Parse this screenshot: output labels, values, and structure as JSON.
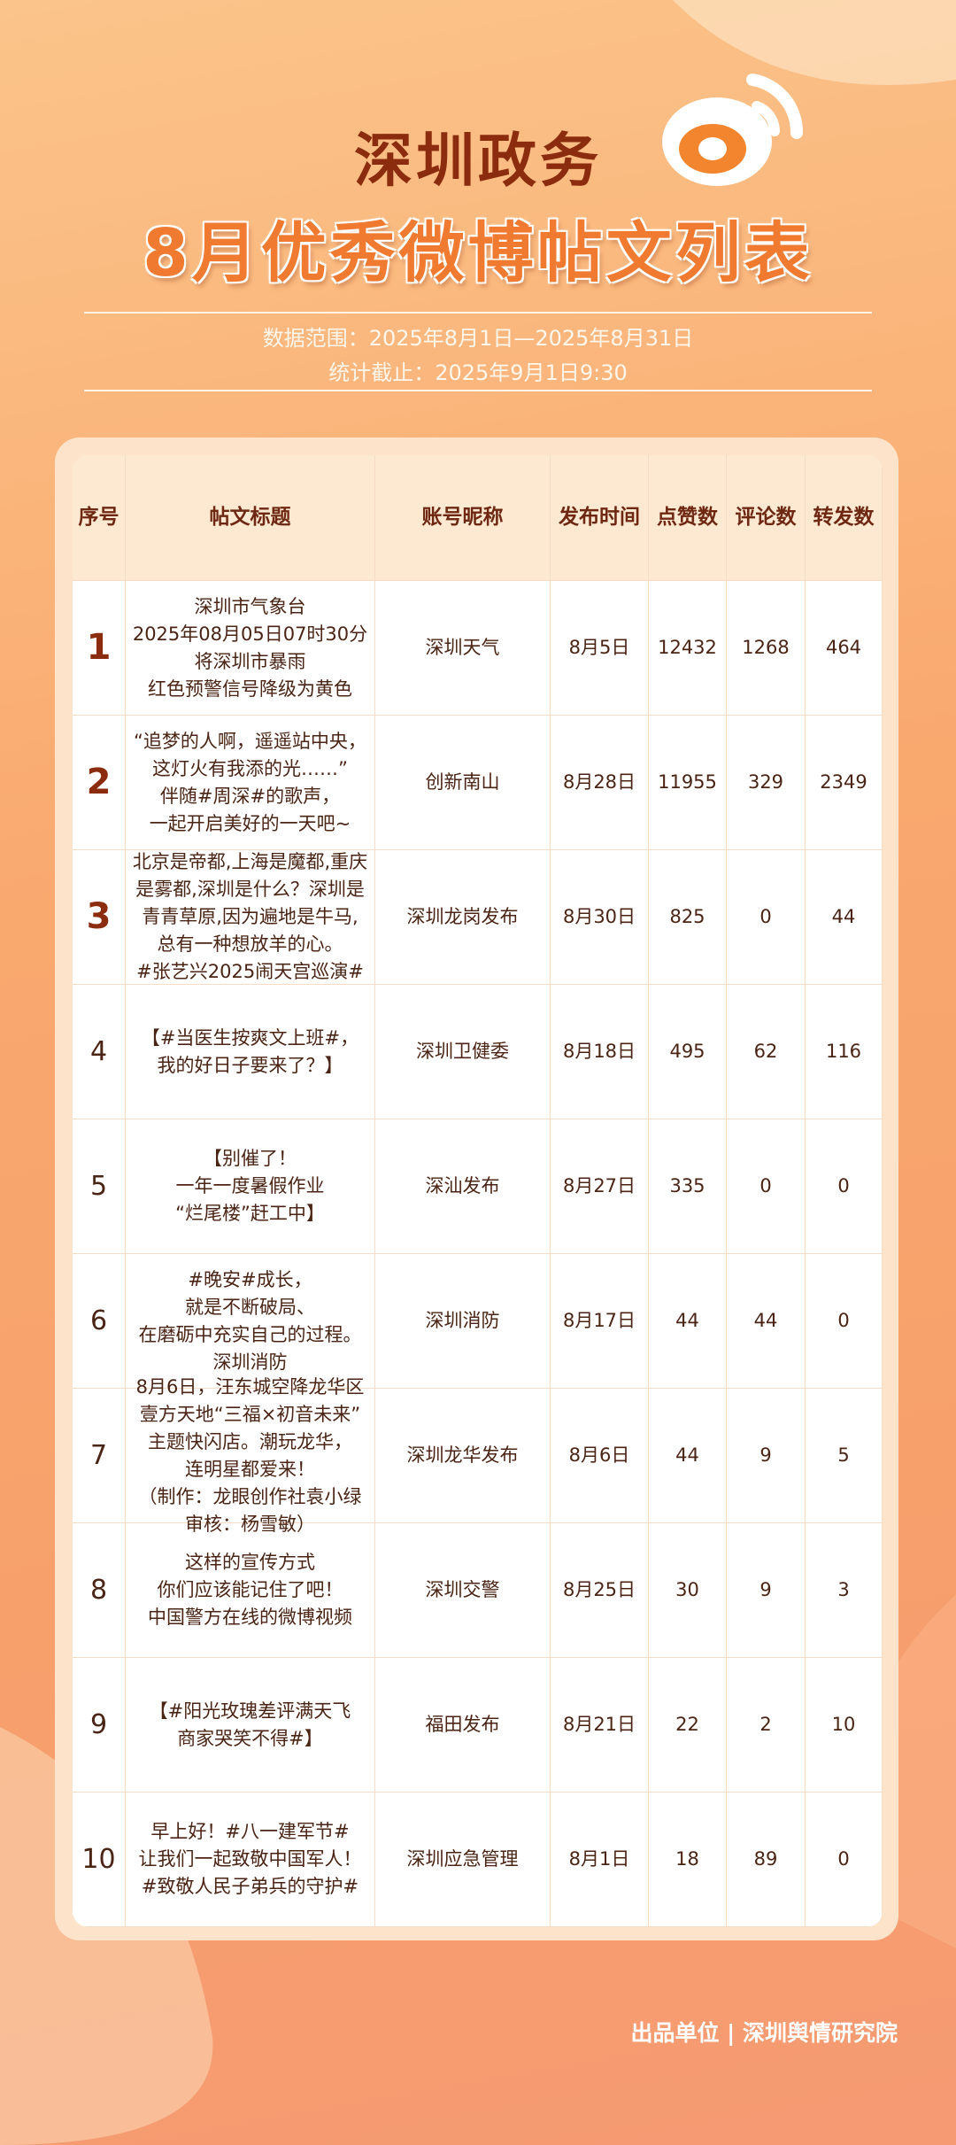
{
  "header": {
    "title": "深圳政务",
    "subtitle": "8月优秀微博帖文列表",
    "range": "数据范围：2025年8月1日—2025年8月31日",
    "cutoff": "统计截止：2025年9月1日9:30"
  },
  "table": {
    "headers": [
      "序号",
      "帖文标题",
      "账号昵称",
      "发布时间",
      "点赞数",
      "评论数",
      "转发数"
    ],
    "rows": [
      [
        1,
        [
          "深圳市气象台",
          "2025年08月05日07时30分",
          "将深圳市暴雨",
          "红色预警信号降级为黄色"
        ],
        "深圳天气",
        "8月5日",
        12432,
        1268,
        464
      ],
      [
        2,
        [
          "“追梦的人啊，遥遥站中央，",
          "这灯火有我添的光……”",
          "伴随#周深#的歌声，",
          "一起开启美好的一天吧~"
        ],
        "创新南山",
        "8月28日",
        11955,
        329,
        2349
      ],
      [
        3,
        [
          "北京是帝都,上海是魔都,重庆",
          "是雾都,深圳是什么？深圳是",
          "青青草原,因为遍地是牛马,",
          "总有一种想放羊的心。",
          "#张艺兴2025闹天宫巡演#"
        ],
        "深圳龙岗发布",
        "8月30日",
        825,
        0,
        44
      ],
      [
        4,
        [
          "【#当医生按爽文上班#，",
          "我的好日子要来了？】"
        ],
        "深圳卫健委",
        "8月18日",
        495,
        62,
        116
      ],
      [
        5,
        [
          "【别催了！",
          "一年一度暑假作业",
          "“烂尾楼”赶工中】"
        ],
        "深汕发布",
        "8月27日",
        335,
        0,
        0
      ],
      [
        6,
        [
          "#晚安#成长，",
          "就是不断破局、",
          "在磨砺中充实自己的过程。",
          "深圳消防"
        ],
        "深圳消防",
        "8月17日",
        44,
        44,
        0
      ],
      [
        7,
        [
          "8月6日，汪东城空降龙华区",
          "壹方天地“三福×初音未来”",
          "主题快闪店。潮玩龙华，",
          "连明星都爱来！",
          "（制作：龙眼创作社袁小绿",
          "审核：杨雪敏）"
        ],
        "深圳龙华发布",
        "8月6日",
        44,
        9,
        5
      ],
      [
        8,
        [
          "这样的宣传方式",
          "你们应该能记住了吧！",
          "中国警方在线的微博视频"
        ],
        "深圳交警",
        "8月25日",
        30,
        9,
        3
      ],
      [
        9,
        [
          "【#阳光玫瑰差评满天飞",
          "商家哭笑不得#】"
        ],
        "福田发布",
        "8月21日",
        22,
        2,
        10
      ],
      [
        10,
        [
          "早上好！#八一建军节#",
          "让我们一起致敬中国军人！",
          "#致敬人民子弟兵的守护#"
        ],
        "深圳应急管理",
        "8月1日",
        18,
        89,
        0
      ]
    ]
  },
  "footer": "出品单位 | 深圳舆情研究院"
}
